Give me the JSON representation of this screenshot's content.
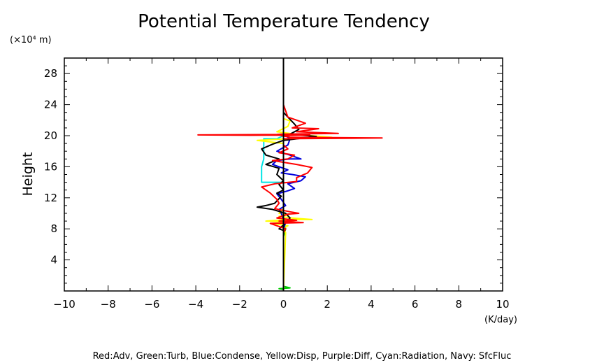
{
  "chart_data": {
    "type": "line",
    "title": "Potential Temperature Tendency",
    "xlabel": "(K/day)",
    "ylabel": "Height",
    "yunit_label": "(×10⁴ m)",
    "xlim": [
      -10,
      10
    ],
    "ylim": [
      0,
      30
    ],
    "xticks": [
      "−10",
      "−8",
      "−6",
      "−4",
      "−2",
      "0",
      "2",
      "4",
      "6",
      "8",
      "10"
    ],
    "xtick_values": [
      -10,
      -8,
      -6,
      -4,
      -2,
      0,
      2,
      4,
      6,
      8,
      10
    ],
    "yticks": [
      "4",
      "8",
      "12",
      "16",
      "20",
      "24",
      "28"
    ],
    "ytick_values": [
      4,
      8,
      12,
      16,
      20,
      24,
      28
    ],
    "grid": false,
    "caption": "Red:Adv, Green:Turb, Blue:Condense, Yellow:Disp, Purple:Diff, Cyan:Radiation, Navy: SfcFluc",
    "series": [
      {
        "name": "Turb",
        "color": "#00cc00",
        "x": [
          0.0,
          -0.2,
          0.3,
          0.0,
          0.0,
          0.1,
          0.0,
          0.0
        ],
        "y": [
          0.2,
          0.3,
          0.4,
          0.6,
          7.0,
          8.0,
          9.0,
          30.0
        ]
      },
      {
        "name": "Radiation",
        "color": "#00e5e5",
        "x": [
          0.0,
          -1.0,
          -1.0,
          -0.9,
          -0.9,
          -0.3,
          0.0,
          0.0
        ],
        "y": [
          14.0,
          14.0,
          16.0,
          17.0,
          19.6,
          19.6,
          20.0,
          30.0
        ]
      },
      {
        "name": "Disp",
        "color": "#ffff00",
        "x": [
          0.0,
          0.1,
          0.0,
          0.2,
          -0.5,
          0.5,
          -0.8,
          0.3,
          1.3,
          0.4,
          -0.2,
          0.2,
          -0.2,
          0.0,
          0.0,
          0.0,
          -1.2,
          0.2,
          2.2,
          0.8,
          -0.3,
          0.2,
          0.3,
          0.0,
          0.0
        ],
        "y": [
          0.0,
          7.5,
          8.1,
          8.4,
          8.7,
          8.9,
          9.0,
          9.2,
          9.2,
          9.4,
          9.6,
          9.8,
          10.0,
          10.6,
          16.0,
          19.0,
          19.4,
          19.6,
          19.8,
          20.1,
          20.5,
          21.2,
          21.9,
          22.2,
          30.0
        ]
      },
      {
        "name": "Condense",
        "color": "#0000dd",
        "x": [
          0.0,
          0.0,
          0.1,
          0.0,
          -0.1,
          -0.2,
          0.1,
          -0.1,
          -0.3,
          0.2,
          0.5,
          0.2,
          0.8,
          1.0,
          0.4,
          -0.1,
          0.2,
          -0.2,
          -0.5,
          -0.3,
          0.3,
          0.8,
          0.3,
          -0.3,
          0.2,
          0.3,
          0.0,
          0.0
        ],
        "y": [
          0.0,
          8.0,
          8.8,
          9.2,
          10.0,
          10.5,
          11.0,
          11.8,
          12.5,
          12.9,
          13.2,
          13.8,
          14.2,
          14.7,
          15.0,
          15.2,
          15.6,
          16.0,
          16.3,
          16.8,
          17.0,
          17.0,
          17.5,
          18.0,
          18.8,
          19.6,
          20.2,
          30.0
        ]
      },
      {
        "name": "Black",
        "color": "#000000",
        "x": [
          0.0,
          0.0,
          -0.2,
          0.0,
          0.3,
          0.1,
          -0.5,
          -1.2,
          -0.8,
          -0.4,
          -0.1,
          -0.3,
          0.0,
          -0.2,
          0.0,
          -0.3,
          -0.2,
          -0.8,
          -0.2,
          -0.8,
          -1.0,
          -0.5,
          0.0,
          1.5,
          0.3,
          0.7,
          0.5,
          0.0,
          0.0
        ],
        "y": [
          0.0,
          7.8,
          8.0,
          8.5,
          9.4,
          10.0,
          10.5,
          10.8,
          11.0,
          11.3,
          12.2,
          12.6,
          13.0,
          13.7,
          14.2,
          15.0,
          15.8,
          16.3,
          17.0,
          17.5,
          18.3,
          18.9,
          19.4,
          19.9,
          20.2,
          20.8,
          21.5,
          23.0,
          30.0
        ]
      },
      {
        "name": "Adv",
        "color": "#ff0000",
        "x": [
          0.0,
          0.0,
          0.1,
          -0.6,
          0.9,
          -0.2,
          0.6,
          -0.3,
          0.0,
          0.2,
          0.7,
          0.3,
          -0.4,
          -0.2,
          -0.3,
          -0.6,
          -1.0,
          -0.4,
          0.6,
          0.6,
          1.1,
          1.3,
          0.6,
          -0.5,
          0.2,
          0.5,
          -0.2,
          0.2,
          0.0,
          0.0,
          4.5,
          0.3,
          -0.1,
          1.2,
          -1.5,
          -3.9,
          -0.3,
          -0.1,
          2.5,
          0.6,
          1.6,
          0.4,
          1.0,
          0.2,
          0.0,
          0.0
        ],
        "y": [
          0.0,
          7.5,
          8.0,
          8.7,
          8.8,
          9.0,
          9.1,
          9.4,
          9.7,
          9.9,
          10.0,
          10.2,
          10.6,
          11.3,
          11.8,
          12.6,
          13.4,
          13.8,
          14.1,
          14.6,
          15.2,
          15.9,
          16.3,
          16.8,
          17.0,
          17.5,
          17.8,
          18.3,
          18.8,
          19.6,
          19.7,
          19.8,
          20.0,
          20.1,
          20.05,
          20.1,
          20.15,
          20.2,
          20.3,
          20.5,
          20.9,
          21.0,
          21.6,
          22.4,
          24.0,
          30.0
        ]
      }
    ]
  }
}
